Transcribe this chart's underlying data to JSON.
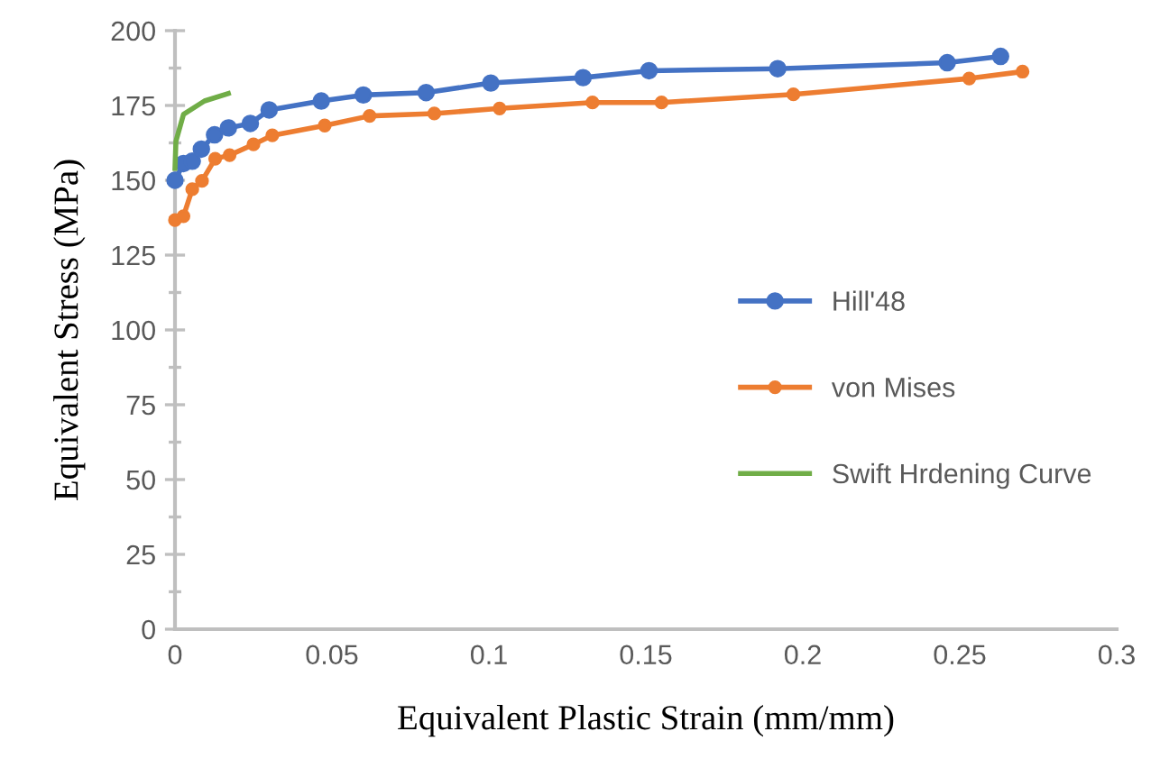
{
  "chart_data": {
    "type": "line",
    "xlabel": "Equivalent Plastic Strain (mm/mm)",
    "ylabel": "Equivalent Stress (MPa)",
    "xlim": [
      0,
      0.3
    ],
    "xticks": [
      0,
      0.05,
      0.1,
      0.15,
      0.2,
      0.25,
      0.3
    ],
    "ylim": [
      0,
      200
    ],
    "yticks": [
      0,
      25,
      50,
      75,
      100,
      125,
      150,
      175,
      200
    ],
    "grid": false,
    "legend": "right",
    "line_style": "solid",
    "series": [
      {
        "name": "Hill'48",
        "color": "#4472c4",
        "marker": "circle",
        "x": [
          0.0,
          0.0027,
          0.0055,
          0.0084,
          0.0126,
          0.017,
          0.024,
          0.03,
          0.0466,
          0.06,
          0.08,
          0.1006,
          0.13,
          0.151,
          0.192,
          0.246,
          0.263
        ],
        "values": [
          150,
          155.6,
          156.4,
          160.4,
          165.2,
          167.5,
          169,
          173.5,
          176.5,
          178.5,
          179.3,
          182.5,
          184.3,
          186.6,
          187.3,
          189.3,
          191.4
        ]
      },
      {
        "name": "von Mises",
        "color": "#ed7d31",
        "marker": "circle",
        "x": [
          0.0,
          0.0027,
          0.0055,
          0.0086,
          0.0128,
          0.0174,
          0.025,
          0.031,
          0.0477,
          0.062,
          0.0826,
          0.1034,
          0.133,
          0.155,
          0.197,
          0.253,
          0.27
        ],
        "values": [
          136.7,
          138,
          147,
          149.8,
          157.2,
          158.4,
          162,
          165,
          168.3,
          171.5,
          172.3,
          174,
          176,
          176,
          178.7,
          184,
          186.3
        ]
      },
      {
        "name": "Swift Hrdening Curve",
        "color": "#70ad47",
        "marker": "none",
        "x": [
          0.0,
          0.0003,
          0.0027,
          0.0094,
          0.017
        ],
        "values": [
          154,
          163,
          172,
          176.5,
          179
        ]
      }
    ]
  }
}
